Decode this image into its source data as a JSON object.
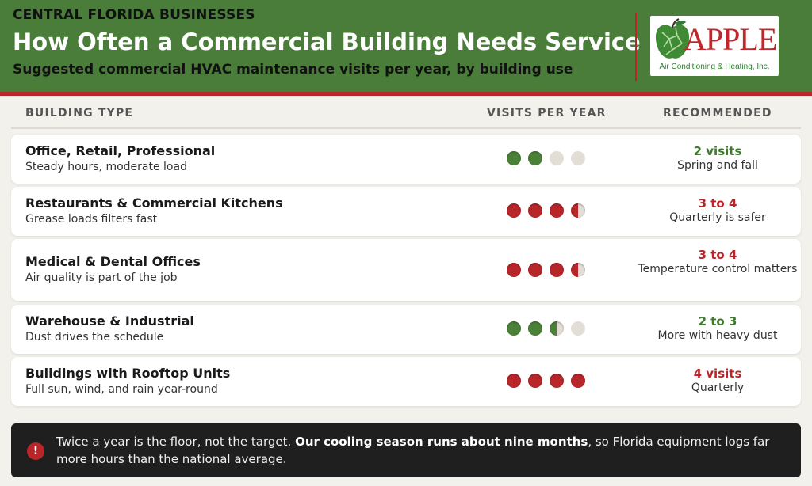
{
  "header": {
    "kicker": "CENTRAL FLORIDA BUSINESSES",
    "title": "How Often a Commercial Building Needs Service",
    "subtitle": "Suggested commercial HVAC maintenance visits per year, by building use",
    "logo": {
      "wordmark": "APPLE",
      "tagline": "Air Conditioning & Heating, Inc.",
      "icon": "apple-icon"
    }
  },
  "columns": {
    "type": "BUILDING TYPE",
    "visits": "VISITS PER YEAR",
    "recommended": "RECOMMENDED"
  },
  "rows": [
    {
      "title": "Office, Retail, Professional",
      "desc": "Steady hours, moderate load",
      "dots": [
        "full-green",
        "full-green",
        "empty",
        "empty"
      ],
      "visits_min": 2,
      "visits_max": 2,
      "rec": "2 visits",
      "rec_tone": "green",
      "note": "Spring and fall"
    },
    {
      "title": "Restaurants & Commercial Kitchens",
      "desc": "Grease loads filters fast",
      "dots": [
        "full-red",
        "full-red",
        "full-red",
        "half-red"
      ],
      "visits_min": 3,
      "visits_max": 4,
      "rec": "3 to 4",
      "rec_tone": "red",
      "note": "Quarterly is safer"
    },
    {
      "title": "Medical & Dental Offices",
      "desc": "Air quality is part of the job",
      "dots": [
        "full-red",
        "full-red",
        "full-red",
        "half-red"
      ],
      "visits_min": 3,
      "visits_max": 4,
      "rec": "3 to 4",
      "rec_tone": "red",
      "note": "Temperature control matters"
    },
    {
      "title": "Warehouse & Industrial",
      "desc": "Dust drives the schedule",
      "dots": [
        "full-green",
        "full-green",
        "half-green",
        "empty"
      ],
      "visits_min": 2,
      "visits_max": 3,
      "rec": "2 to 3",
      "rec_tone": "green",
      "note": "More with heavy dust"
    },
    {
      "title": "Buildings with Rooftop Units",
      "desc": "Full sun, wind, and rain year-round",
      "dots": [
        "full-red",
        "full-red",
        "full-red",
        "full-red"
      ],
      "visits_min": 4,
      "visits_max": 4,
      "rec": "4 visits",
      "rec_tone": "red",
      "note": "Quarterly"
    }
  ],
  "footer": {
    "icon": "alert-icon",
    "text_before": "Twice a year is the floor, not the target. ",
    "text_bold": "Our cooling season runs about nine months",
    "text_after": ", so Florida equipment logs far more hours than the national average."
  },
  "colors": {
    "brand_green": "#4a7d3a",
    "brand_red": "#b8262a",
    "dot_empty": "#e2ddd5"
  }
}
